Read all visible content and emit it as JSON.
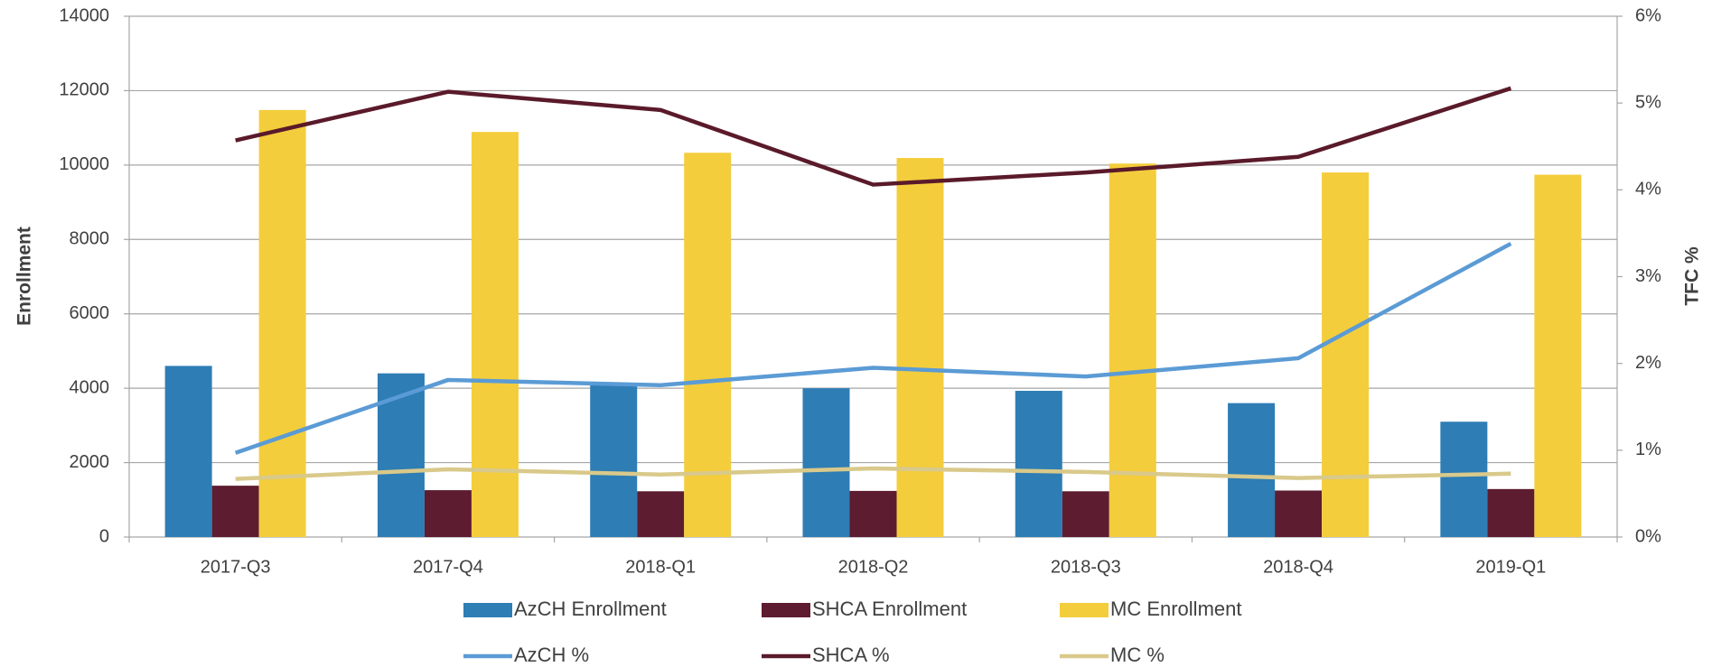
{
  "chart_data": {
    "type": "bar",
    "categories": [
      "2017-Q3",
      "2017-Q4",
      "2018-Q1",
      "2018-Q2",
      "2018-Q3",
      "2018-Q4",
      "2019-Q1"
    ],
    "ylabel": "Enrollment",
    "y2label": "TFC %",
    "ylim": [
      0,
      14000
    ],
    "yticks": [
      0,
      2000,
      4000,
      6000,
      8000,
      10000,
      12000,
      14000
    ],
    "y2lim": [
      0,
      6
    ],
    "y2ticks": [
      {
        "value": 0,
        "label": "0%"
      },
      {
        "value": 1,
        "label": "1%"
      },
      {
        "value": 2,
        "label": "2%"
      },
      {
        "value": 3,
        "label": "3%"
      },
      {
        "value": 4,
        "label": "4%"
      },
      {
        "value": 5,
        "label": "5%"
      },
      {
        "value": 6,
        "label": "6%"
      }
    ],
    "grid": true,
    "legend": "bottom",
    "series": [
      {
        "name": "AzCH Enrollment",
        "color": "#2e7db5",
        "type": "bar",
        "values": [
          4600,
          4400,
          4100,
          4000,
          3930,
          3600,
          3100
        ]
      },
      {
        "name": "SHCA Enrollment",
        "color": "#5e1c30",
        "type": "bar",
        "values": [
          1380,
          1260,
          1230,
          1240,
          1230,
          1250,
          1290
        ]
      },
      {
        "name": "MC Enrollment",
        "color": "#f4cd3c",
        "type": "bar",
        "values": [
          11480,
          10890,
          10330,
          10190,
          10040,
          9800,
          9740
        ]
      },
      {
        "name": "AzCH %",
        "color": "#5b9bd5",
        "type": "line",
        "axis": "y2",
        "values": [
          0.97,
          1.81,
          1.75,
          1.95,
          1.85,
          2.06,
          3.38
        ]
      },
      {
        "name": "SHCA %",
        "color": "#5a1a2a",
        "type": "line",
        "axis": "y2",
        "values": [
          4.57,
          5.13,
          4.92,
          4.06,
          4.2,
          4.38,
          5.17
        ]
      },
      {
        "name": "MC %",
        "color": "#d9c98a",
        "type": "line",
        "axis": "y2",
        "values": [
          0.67,
          0.78,
          0.72,
          0.79,
          0.75,
          0.68,
          0.73
        ]
      }
    ]
  }
}
